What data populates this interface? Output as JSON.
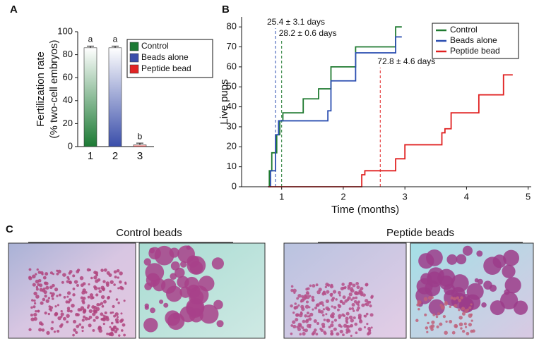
{
  "chart_data": [
    {
      "type": "bar",
      "panel": "A",
      "y_label": [
        "Fertilization rate",
        "(% two-cell embryos)"
      ],
      "categories": [
        "1",
        "2",
        "3"
      ],
      "values": [
        86,
        86,
        1.5
      ],
      "errors": [
        1.5,
        1.5,
        1.5
      ],
      "significance": [
        "a",
        "a",
        "b"
      ],
      "colors": [
        "#1c7a34",
        "#3a4eaa",
        "#e02424"
      ],
      "legend": [
        {
          "name": "Control",
          "color": "#1c7a34"
        },
        {
          "name": "Beads alone",
          "color": "#3a4eaa"
        },
        {
          "name": "Peptide bead",
          "color": "#e02424"
        }
      ],
      "ylim": [
        0,
        100
      ],
      "yticks": [
        0,
        20,
        40,
        60,
        80,
        100
      ]
    },
    {
      "type": "step",
      "panel": "B",
      "x_label": "Time (months)",
      "y_label": "Live pups",
      "series": [
        {
          "name": "Control",
          "color": "#1f7a30",
          "x": [
            0.78,
            0.8,
            0.84,
            0.92,
            0.97,
            1.02,
            1.35,
            1.6,
            1.8,
            2.2,
            2.85,
            2.95
          ],
          "values": [
            0,
            8,
            17,
            26,
            33,
            37,
            44,
            49,
            60,
            70,
            80,
            80
          ]
        },
        {
          "name": "Beads alone",
          "color": "#2a4db0",
          "x": [
            0.78,
            0.82,
            0.9,
            0.95,
            1.75,
            1.8,
            2.2,
            2.85,
            2.95
          ],
          "values": [
            0,
            8,
            26,
            33,
            38,
            53,
            67,
            75,
            75
          ]
        },
        {
          "name": "Peptide bead",
          "color": "#e02020",
          "x": [
            0.78,
            2.3,
            2.35,
            2.85,
            3.0,
            3.6,
            3.65,
            3.75,
            4.2,
            4.6,
            4.75
          ],
          "values": [
            0,
            6,
            8,
            14,
            21,
            27,
            29,
            37,
            46,
            56,
            56
          ]
        }
      ],
      "markers": [
        {
          "x": 0.9,
          "label": "25.4 ± 3.1 days",
          "color": "#2a4db0"
        },
        {
          "x": 1.0,
          "label": "28.2 ± 0.6 days",
          "color": "#1f7a30"
        },
        {
          "x": 2.6,
          "label": "72.8 ± 4.6 days",
          "color": "#e02020"
        }
      ],
      "xlim": [
        0.35,
        5.05
      ],
      "xticks": [
        1,
        2,
        3,
        4,
        5
      ],
      "ylim": [
        0,
        85
      ],
      "yticks": [
        0,
        10,
        20,
        30,
        40,
        50,
        60,
        70,
        80
      ],
      "legend_position": "upper right"
    }
  ],
  "panel_c": {
    "panel": "C",
    "captions": [
      "Control beads",
      "Peptide beads"
    ]
  }
}
